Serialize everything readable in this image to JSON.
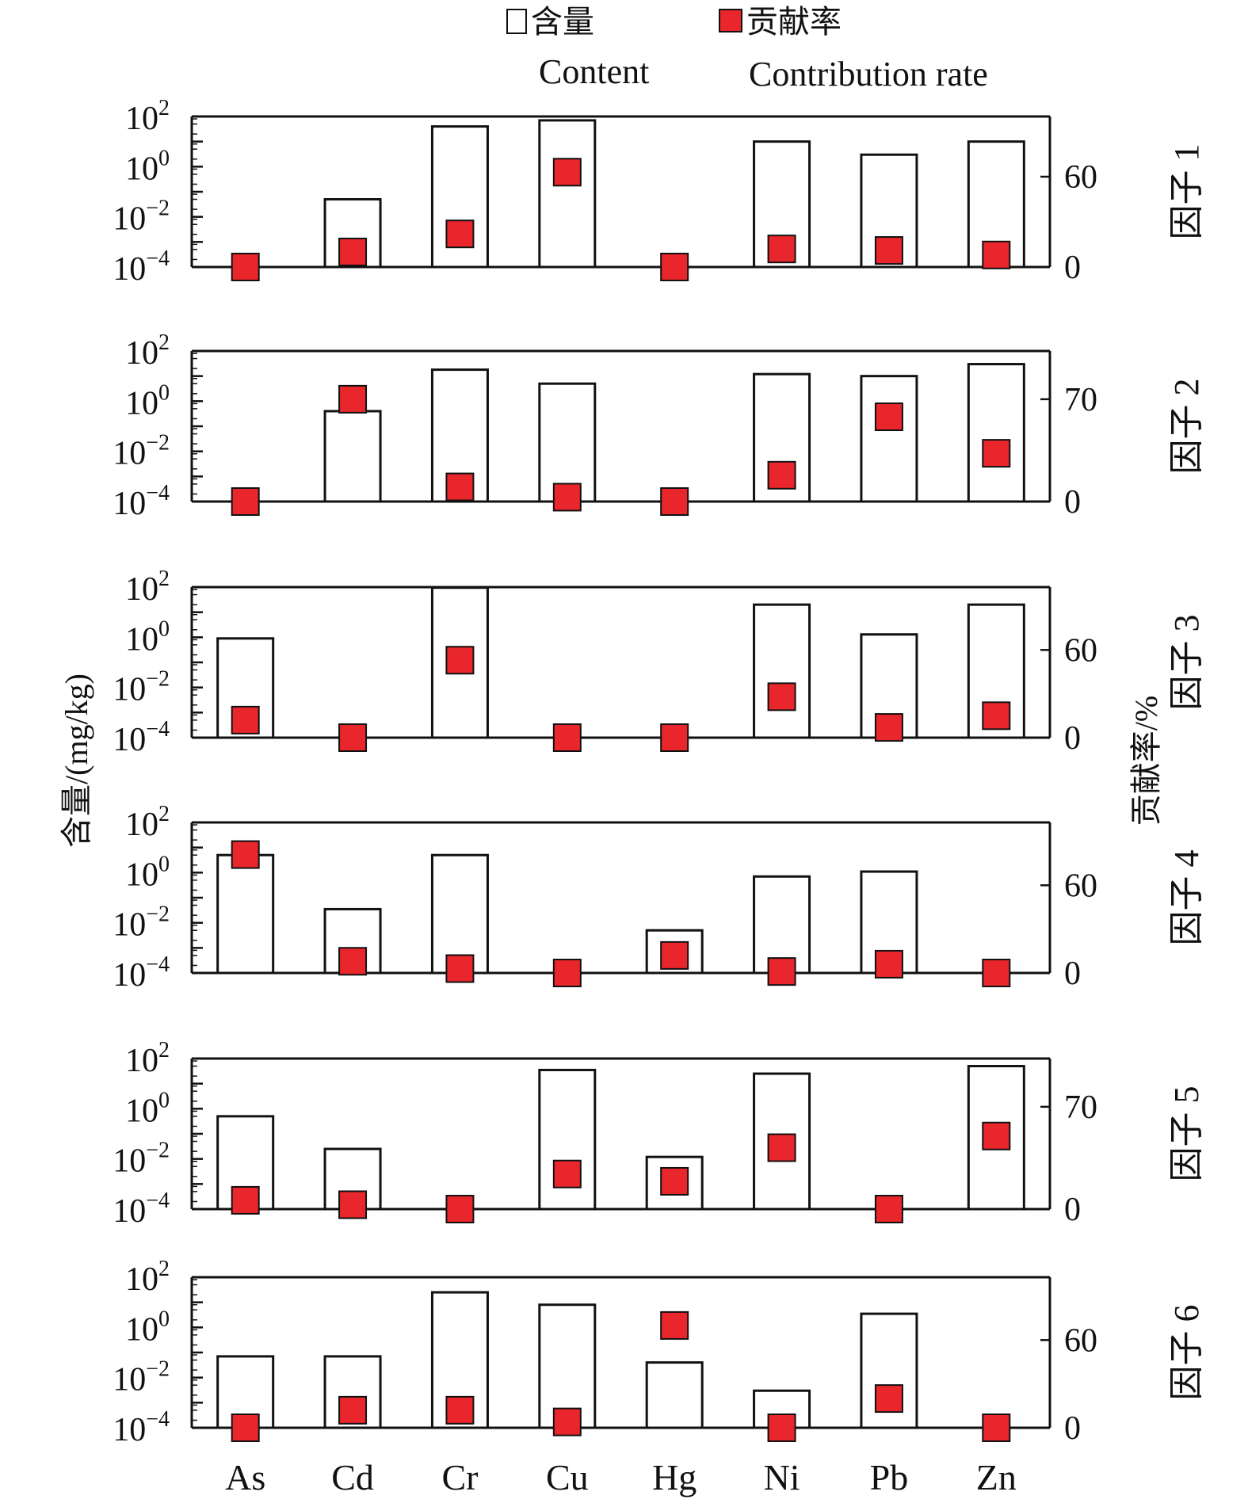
{
  "legend": {
    "content_cn": "含量",
    "content_en": "Content",
    "rate_cn": "贡献率",
    "rate_en": "Contribution rate"
  },
  "colors": {
    "marker_fill": "#e8262c",
    "axis": "#111111"
  },
  "left_axis_label": "含量/(mg/kg)",
  "right_axis_label": "贡献率/%",
  "chart_data": {
    "type": "bar",
    "categories": [
      "As",
      "Cd",
      "Cr",
      "Cu",
      "Hg",
      "Ni",
      "Pb",
      "Zn"
    ],
    "y_left": {
      "scale": "log",
      "ylim": [
        0.0001,
        100
      ],
      "tick_values": [
        100,
        1,
        0.01,
        0.0001
      ]
    },
    "panels": [
      {
        "label": "因子 1",
        "content": [
          0.0001,
          0.05,
          40,
          70,
          0.0001,
          10,
          3,
          10
        ],
        "contribution": [
          0,
          10,
          22,
          63,
          0,
          12,
          11,
          8
        ],
        "rate_ticks": [
          0,
          60
        ],
        "rate_max": 100
      },
      {
        "label": "因子 2",
        "content": [
          0.0001,
          0.4,
          18,
          5,
          0.0001,
          12,
          10,
          30
        ],
        "contribution": [
          0,
          70,
          10,
          3,
          0,
          18,
          58,
          33
        ],
        "rate_ticks": [
          0,
          70
        ],
        "rate_max": 103
      },
      {
        "label": "因子 3",
        "content": [
          0.9,
          0.0001,
          95,
          0.0001,
          0.0001,
          20,
          1.3,
          20
        ],
        "contribution": [
          12,
          0,
          53,
          0,
          0,
          28,
          7,
          15
        ],
        "rate_ticks": [
          0,
          60
        ],
        "rate_max": 103
      },
      {
        "label": "因子 4",
        "content": [
          5,
          0.035,
          5,
          0.0001,
          0.005,
          0.7,
          1.1,
          0.0001
        ],
        "contribution": [
          81,
          8,
          3,
          0,
          12,
          1,
          6,
          0
        ],
        "rate_ticks": [
          0,
          60
        ],
        "rate_max": 103
      },
      {
        "label": "因子 5",
        "content": [
          0.5,
          0.025,
          0.0001,
          35,
          0.012,
          25,
          0.0001,
          50
        ],
        "contribution": [
          6,
          3,
          0,
          24,
          19,
          42,
          0,
          50
        ],
        "rate_ticks": [
          0,
          70
        ],
        "rate_max": 103
      },
      {
        "label": "因子 6",
        "content": [
          0.07,
          0.07,
          25,
          8,
          0.04,
          0.003,
          3.5,
          0.0001
        ],
        "contribution": [
          0,
          12,
          12,
          4,
          70,
          0,
          20,
          0
        ],
        "rate_ticks": [
          0,
          60
        ],
        "rate_max": 103
      }
    ]
  }
}
